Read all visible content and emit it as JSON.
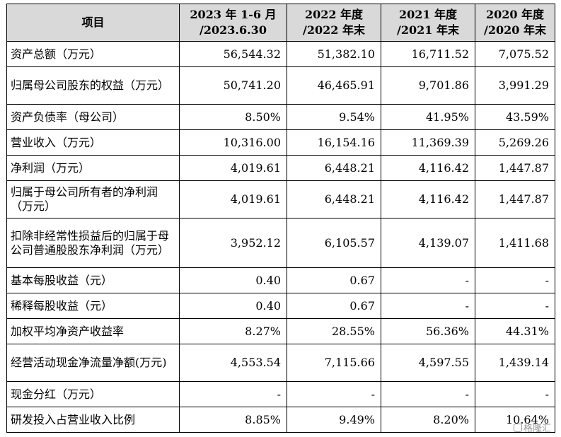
{
  "table": {
    "headers": [
      "项目",
      "2023 年 1-6 月\n/2023.6.30",
      "2022 年度\n/2022 年末",
      "2021 年度\n/2021 年末",
      "2020 年度\n/2020 年末"
    ],
    "rows": [
      {
        "label": "资产总额（万元）",
        "values": [
          "56,544.32",
          "51,382.10",
          "16,711.52",
          "7,075.52"
        ]
      },
      {
        "label": "归属母公司股东的权益（万元）",
        "values": [
          "50,741.20",
          "46,465.91",
          "9,701.86",
          "3,991.29"
        ]
      },
      {
        "label": "资产负债率（母公司）",
        "values": [
          "8.50%",
          "9.54%",
          "41.95%",
          "43.59%"
        ]
      },
      {
        "label": "营业收入（万元）",
        "values": [
          "10,316.00",
          "16,154.16",
          "11,369.39",
          "5,269.26"
        ]
      },
      {
        "label": "净利润（万元）",
        "values": [
          "4,019.61",
          "6,448.21",
          "4,116.42",
          "1,447.87"
        ]
      },
      {
        "label": "归属于母公司所有者的净利润（万元）",
        "values": [
          "4,019.61",
          "6,448.21",
          "4,116.42",
          "1,447.87"
        ]
      },
      {
        "label": "扣除非经常性损益后的归属于母公司普通股股东净利润（万元）",
        "values": [
          "3,952.12",
          "6,105.57",
          "4,139.07",
          "1,411.68"
        ]
      },
      {
        "label": "基本每股收益（元）",
        "values": [
          "0.40",
          "0.67",
          "-",
          "-"
        ]
      },
      {
        "label": "稀释每股收益（元）",
        "values": [
          "0.40",
          "0.67",
          "-",
          "-"
        ]
      },
      {
        "label": "加权平均净资产收益率",
        "values": [
          "8.27%",
          "28.55%",
          "56.36%",
          "44.31%"
        ]
      },
      {
        "label": "经营活动现金净流量净额(万元)",
        "values": [
          "4,553.54",
          "7,115.66",
          "4,597.55",
          "1,439.14"
        ]
      },
      {
        "label": "现金分红（万元）",
        "values": [
          "-",
          "-",
          "-",
          "-"
        ]
      },
      {
        "label": "研发投入占营业收入比例",
        "values": [
          "8.85%",
          "9.49%",
          "8.20%",
          "10.64%"
        ]
      }
    ]
  },
  "watermark": {
    "text": "格隆汇",
    "icon": "logo-icon"
  }
}
